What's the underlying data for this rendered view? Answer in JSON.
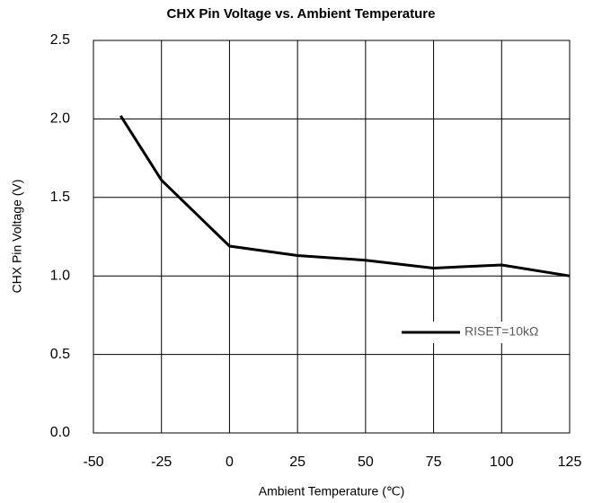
{
  "chart_data": {
    "type": "line",
    "title": "CHX Pin Voltage vs. Ambient Temperature",
    "x_label": "Ambient Temperature (℃)",
    "y_label": "CHX Pin Voltage (V)",
    "x": [
      -40,
      -25,
      0,
      25,
      50,
      75,
      100,
      125
    ],
    "series": [
      {
        "name": "RISET=10kΩ",
        "color": "#000000",
        "values": [
          2.02,
          1.61,
          1.19,
          1.13,
          1.1,
          1.05,
          1.07,
          1.0
        ]
      }
    ],
    "xlim": [
      -50,
      125
    ],
    "xticks": [
      -50,
      -25,
      0,
      25,
      50,
      75,
      100,
      125
    ],
    "ylim": [
      0,
      2.5
    ],
    "yticks": [
      {
        "value": 0,
        "label": "0.0"
      },
      0.5,
      {
        "value": 1,
        "label": "1.0"
      },
      1.5,
      {
        "value": 2,
        "label": "2.0"
      },
      2.5
    ],
    "grid": true,
    "legend": "right"
  }
}
